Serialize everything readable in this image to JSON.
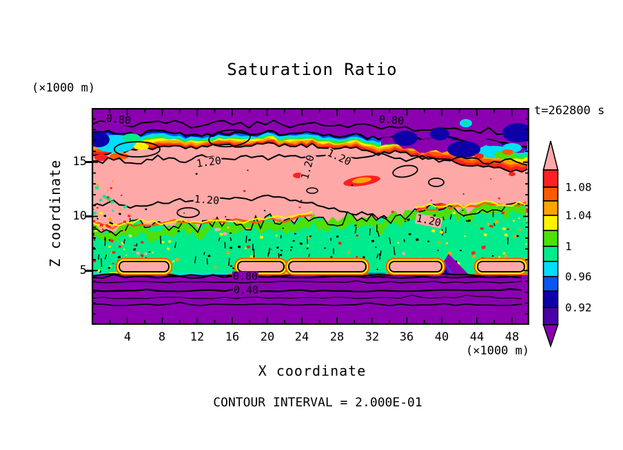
{
  "title": "Saturation Ratio",
  "timestamp": "t=262800 s",
  "axes": {
    "x_label": "X coordinate",
    "x_unit": "(×1000 m)",
    "y_label": "Z coordinate",
    "y_unit": "(×1000 m)",
    "x_ticks": [
      "4",
      "8",
      "12",
      "16",
      "20",
      "24",
      "28",
      "32",
      "36",
      "40",
      "44",
      "48"
    ],
    "y_ticks": [
      "15",
      "10",
      "5"
    ]
  },
  "footer": {
    "contour_interval_note": "CONTOUR INTERVAL = 2.000E-01"
  },
  "colorbar": {
    "labels": [
      "1.08",
      "1.04",
      "1",
      "0.96",
      "0.92"
    ],
    "colors_top_to_bottom": [
      "#FFA8A8",
      "#FF2121",
      "#FF5A00",
      "#FFA300",
      "#FFF200",
      "#4DE00A",
      "#00EB8C",
      "#00DDFF",
      "#0957F0",
      "#0D00A8",
      "#4A00A8",
      "#8A00B0"
    ]
  },
  "plot": {
    "contour_labels": [
      {
        "text": "0.80"
      },
      {
        "text": "0.80"
      },
      {
        "text": "1.20"
      },
      {
        "text": "1.20"
      },
      {
        "text": "1.20"
      },
      {
        "text": "1.20"
      },
      {
        "text": "1.20"
      },
      {
        "text": "0.80"
      },
      {
        "text": "0.40"
      }
    ]
  },
  "chart_data": {
    "type": "heatmap",
    "subtype": "filled-contour-cross-section",
    "title": "Saturation Ratio",
    "xlabel": "X coordinate",
    "x_unit": "x1000 m",
    "ylabel": "Z coordinate",
    "y_unit": "x1000 m",
    "xlim": [
      0,
      50
    ],
    "ylim": [
      0,
      20
    ],
    "x_ticks": [
      4,
      8,
      12,
      16,
      20,
      24,
      28,
      32,
      36,
      40,
      44,
      48
    ],
    "y_ticks": [
      5,
      10,
      15
    ],
    "time_label": "t=262800 s",
    "time_seconds": 262800,
    "contour_interval": 0.2,
    "labeled_contour_values": [
      0.4,
      0.8,
      1.2
    ],
    "colorbar_tick_values": [
      1.08,
      1.04,
      1,
      0.96,
      0.92
    ],
    "colorbar_bands": [
      {
        "min": 1.1,
        "max": null,
        "color": "#FFA8A8",
        "shape": "upper-arrow"
      },
      {
        "min": 1.08,
        "max": 1.1,
        "color": "#FF2121"
      },
      {
        "min": 1.06,
        "max": 1.08,
        "color": "#FF5A00"
      },
      {
        "min": 1.04,
        "max": 1.06,
        "color": "#FFA300"
      },
      {
        "min": 1.02,
        "max": 1.04,
        "color": "#FFF200"
      },
      {
        "min": 1.0,
        "max": 1.02,
        "color": "#4DE00A"
      },
      {
        "min": 0.98,
        "max": 1.0,
        "color": "#00EB8C"
      },
      {
        "min": 0.96,
        "max": 0.98,
        "color": "#00DDFF"
      },
      {
        "min": 0.94,
        "max": 0.96,
        "color": "#0957F0"
      },
      {
        "min": 0.92,
        "max": 0.94,
        "color": "#0D00A8"
      },
      {
        "min": 0.9,
        "max": 0.92,
        "color": "#4A00A8"
      },
      {
        "min": null,
        "max": 0.9,
        "color": "#8A00B0",
        "shape": "lower-arrow"
      }
    ],
    "field_summary": [
      {
        "z_range": [
          17.5,
          20
        ],
        "value_range": "S < 0.90",
        "description": "uniform purple subsaturated layer at top, wavy 0.80 contour runs through it (two 0.80 labels)"
      },
      {
        "z_range": [
          16,
          17.5
        ],
        "value_range": "0.90 - 1.10",
        "description": "sharp rainbow transition band (navy/blue/cyan/green/yellow/orange/red); deeper cold pockets (navy/purple) on left edge and right third with embedded cyan/green/red blobs"
      },
      {
        "z_range": [
          9,
          16
        ],
        "value_range": "1.10 - 1.20+",
        "description": "broad pink supersaturated region with wavy 1.20 contour lines (five 1.20 labels) and scattered red/orange/yellow maxima blobs"
      },
      {
        "z_range": [
          5,
          9
        ],
        "value_range": "0.98 - 1.02",
        "description": "noisy green band (spring green with chartreuse fringe), speckled with black/yellow/red dots; pink pill-shaped pockets just above z=5; noisy red/orange columns at left and right edges"
      },
      {
        "z_range": [
          0,
          4.7
        ],
        "value_range": "S < 0.90 decreasing downward",
        "description": "purple layer with quasi-horizontal contour lines labeled 0.80 and 0.40; thin cyan/blue strip and narrow purple wedges at its top boundary"
      }
    ]
  }
}
